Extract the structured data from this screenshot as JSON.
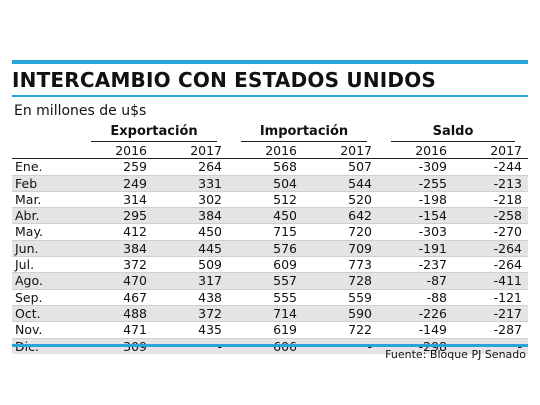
{
  "chart_data": {
    "type": "table",
    "title": "INTERCAMBIO CON ESTADOS UNIDOS",
    "subtitle": "En millones de u$s",
    "groups": [
      "Exportación",
      "Importación",
      "Saldo"
    ],
    "years": [
      "2016",
      "2017"
    ],
    "rows": [
      {
        "month": "Ene.",
        "exp2016": "259",
        "exp2017": "264",
        "imp2016": "568",
        "imp2017": "507",
        "sal2016": "-309",
        "sal2017": "-244"
      },
      {
        "month": "Feb",
        "exp2016": "249",
        "exp2017": "331",
        "imp2016": "504",
        "imp2017": "544",
        "sal2016": "-255",
        "sal2017": "-213"
      },
      {
        "month": "Mar.",
        "exp2016": "314",
        "exp2017": "302",
        "imp2016": "512",
        "imp2017": "520",
        "sal2016": "-198",
        "sal2017": "-218"
      },
      {
        "month": "Abr.",
        "exp2016": "295",
        "exp2017": "384",
        "imp2016": "450",
        "imp2017": "642",
        "sal2016": "-154",
        "sal2017": "-258"
      },
      {
        "month": "May.",
        "exp2016": "412",
        "exp2017": "450",
        "imp2016": "715",
        "imp2017": "720",
        "sal2016": "-303",
        "sal2017": "-270"
      },
      {
        "month": "Jun.",
        "exp2016": "384",
        "exp2017": "445",
        "imp2016": "576",
        "imp2017": "709",
        "sal2016": "-191",
        "sal2017": "-264"
      },
      {
        "month": "Jul.",
        "exp2016": "372",
        "exp2017": "509",
        "imp2016": "609",
        "imp2017": "773",
        "sal2016": "-237",
        "sal2017": "-264"
      },
      {
        "month": "Ago.",
        "exp2016": "470",
        "exp2017": "317",
        "imp2016": "557",
        "imp2017": "728",
        "sal2016": "-87",
        "sal2017": "-411"
      },
      {
        "month": "Sep.",
        "exp2016": "467",
        "exp2017": "438",
        "imp2016": "555",
        "imp2017": "559",
        "sal2016": "-88",
        "sal2017": "-121"
      },
      {
        "month": "Oct.",
        "exp2016": "488",
        "exp2017": "372",
        "imp2016": "714",
        "imp2017": "590",
        "sal2016": "-226",
        "sal2017": "-217"
      },
      {
        "month": "Nov.",
        "exp2016": "471",
        "exp2017": "435",
        "imp2016": "619",
        "imp2017": "722",
        "sal2016": "-149",
        "sal2017": "-287"
      },
      {
        "month": "Dic.",
        "exp2016": "309",
        "exp2017": "-",
        "imp2016": "606",
        "imp2017": "-",
        "sal2016": "-298",
        "sal2017": "-"
      }
    ],
    "source": "Fuente: Bloque PJ Senado"
  },
  "colors": {
    "accent": "#29a3dc",
    "row_alt": "#e4e4e4",
    "text": "#111111"
  }
}
